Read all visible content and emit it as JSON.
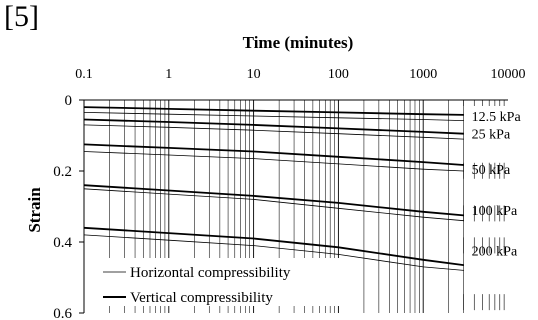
{
  "figure_ref": "[5]",
  "chart_data": {
    "type": "line",
    "title": "Time (minutes)",
    "xlabel": "",
    "ylabel": "Strain",
    "x_scale": "log",
    "xlim": [
      0.1,
      10000
    ],
    "ylim": [
      0,
      0.6
    ],
    "y_inverted": true,
    "x_tick_labels": [
      "0.1",
      "1",
      "10",
      "100",
      "1000",
      "10000"
    ],
    "y_tick_labels": [
      "0",
      "0.2",
      "0.4",
      "0.6"
    ],
    "grid": true,
    "stress_levels": [
      "12.5 kPa",
      "25 kPa",
      "50 kPa",
      "100 kPa",
      "200 kPa"
    ],
    "legend": {
      "placement": "bottom-left",
      "entries": [
        {
          "label": "Horizontal compressibility",
          "style": "thin"
        },
        {
          "label": "Vertical compressibility",
          "style": "thick"
        }
      ]
    },
    "series": [
      {
        "style": "thick",
        "stress": "12.5 kPa",
        "x": [
          0.1,
          1,
          10,
          100,
          1000,
          3000
        ],
        "y": [
          0.02,
          0.025,
          0.03,
          0.035,
          0.04,
          0.042
        ]
      },
      {
        "style": "thin",
        "stress": "12.5 kPa",
        "x": [
          0.1,
          1,
          10,
          100,
          1000,
          3000
        ],
        "y": [
          0.035,
          0.04,
          0.045,
          0.05,
          0.055,
          0.058
        ]
      },
      {
        "style": "thick",
        "stress": "25 kPa",
        "x": [
          0.1,
          1,
          10,
          100,
          1000,
          3000
        ],
        "y": [
          0.055,
          0.062,
          0.07,
          0.08,
          0.09,
          0.095
        ]
      },
      {
        "style": "thin",
        "stress": "25 kPa",
        "x": [
          0.1,
          1,
          10,
          100,
          1000,
          3000
        ],
        "y": [
          0.07,
          0.077,
          0.085,
          0.095,
          0.105,
          0.11
        ]
      },
      {
        "style": "thick",
        "stress": "50 kPa",
        "x": [
          0.1,
          1,
          10,
          100,
          1000,
          3000
        ],
        "y": [
          0.125,
          0.135,
          0.145,
          0.16,
          0.175,
          0.183
        ]
      },
      {
        "style": "thin",
        "stress": "50 kPa",
        "x": [
          0.1,
          1,
          10,
          100,
          1000,
          3000
        ],
        "y": [
          0.145,
          0.155,
          0.165,
          0.18,
          0.195,
          0.2
        ]
      },
      {
        "style": "thick",
        "stress": "100 kPa",
        "x": [
          0.1,
          1,
          10,
          100,
          1000,
          3000
        ],
        "y": [
          0.24,
          0.255,
          0.27,
          0.29,
          0.315,
          0.325
        ]
      },
      {
        "style": "thin",
        "stress": "100 kPa",
        "x": [
          0.1,
          1,
          10,
          100,
          1000,
          3000
        ],
        "y": [
          0.25,
          0.265,
          0.28,
          0.305,
          0.33,
          0.34
        ]
      },
      {
        "style": "thick",
        "stress": "200 kPa",
        "x": [
          0.1,
          1,
          10,
          100,
          1000,
          3000
        ],
        "y": [
          0.36,
          0.375,
          0.39,
          0.415,
          0.45,
          0.465
        ]
      },
      {
        "style": "thin",
        "stress": "200 kPa",
        "x": [
          0.1,
          1,
          10,
          100,
          1000,
          3000
        ],
        "y": [
          0.38,
          0.395,
          0.41,
          0.435,
          0.47,
          0.48
        ]
      }
    ]
  }
}
